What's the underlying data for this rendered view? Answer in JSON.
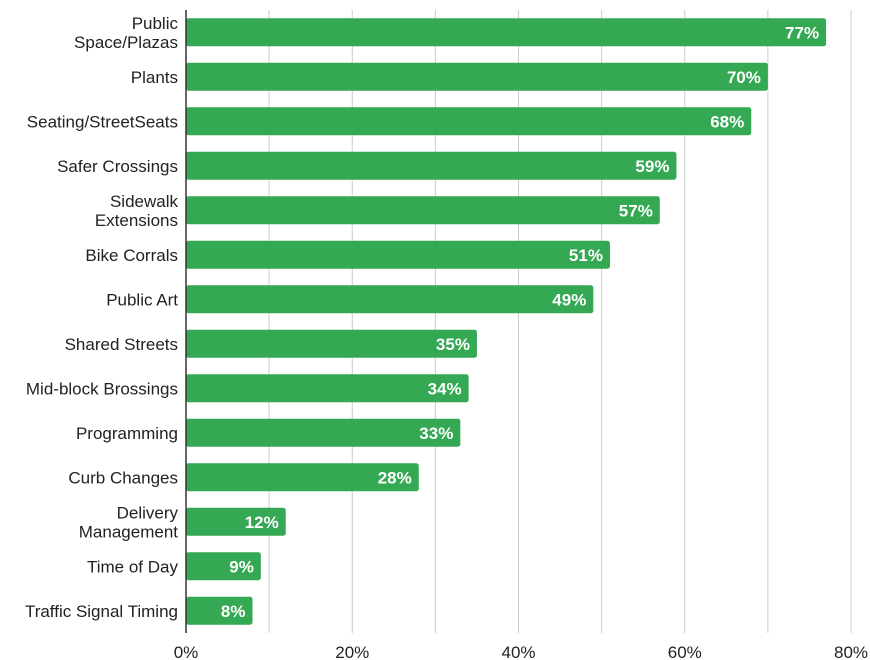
{
  "chart_data": {
    "type": "bar",
    "orientation": "horizontal",
    "title": "",
    "xlabel": "",
    "ylabel": "",
    "categories": [
      [
        "Public",
        "Space/Plazas"
      ],
      [
        "Plants"
      ],
      [
        "Seating/StreetSeats"
      ],
      [
        "Safer Crossings"
      ],
      [
        "Sidewalk",
        "Extensions"
      ],
      [
        "Bike Corrals"
      ],
      [
        "Public Art"
      ],
      [
        "Shared Streets"
      ],
      [
        "Mid-block Brossings"
      ],
      [
        "Programming"
      ],
      [
        "Curb Changes"
      ],
      [
        "Delivery",
        "Management"
      ],
      [
        "Time of Day"
      ],
      [
        "Traffic Signal Timing"
      ]
    ],
    "values": [
      77,
      70,
      68,
      59,
      57,
      51,
      49,
      35,
      34,
      33,
      28,
      12,
      9,
      8
    ],
    "value_labels": [
      "77%",
      "70%",
      "68%",
      "59%",
      "57%",
      "51%",
      "49%",
      "35%",
      "34%",
      "33%",
      "28%",
      "12%",
      "9%",
      "8%"
    ],
    "xlim": [
      0,
      80
    ],
    "x_ticks": [
      0,
      20,
      40,
      60,
      80
    ],
    "x_tick_labels": [
      "0%",
      "20%",
      "40%",
      "60%",
      "80%"
    ],
    "grid": true,
    "legend": "none",
    "bar_color": "#34a853",
    "grid_color": "#cccccc",
    "axis_color": "#333333"
  }
}
